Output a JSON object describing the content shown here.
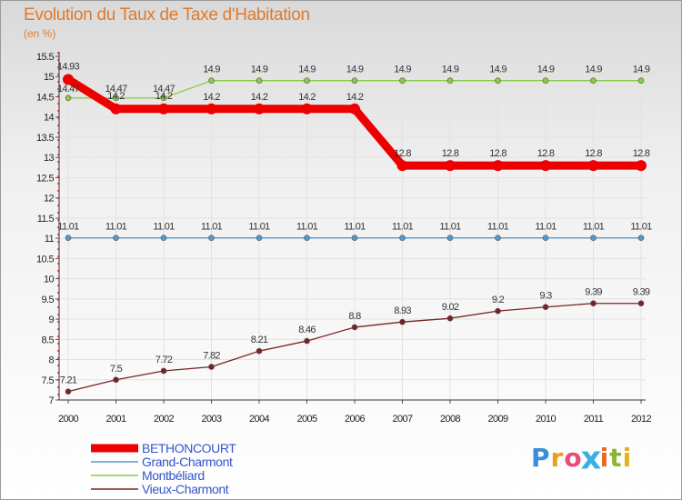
{
  "chart_data": {
    "type": "line",
    "title": "Evolution du Taux de Taxe d'Habitation",
    "subtitle": "(en %)",
    "x": [
      "2000",
      "2001",
      "2002",
      "2003",
      "2004",
      "2005",
      "2006",
      "2007",
      "2008",
      "2009",
      "2010",
      "2011",
      "2012"
    ],
    "yticks": [
      "7",
      "7.5",
      "8",
      "8.5",
      "9",
      "9.5",
      "10",
      "10.5",
      "11",
      "11.5",
      "12",
      "12.5",
      "13",
      "13.5",
      "14",
      "14.5",
      "15",
      "15.5"
    ],
    "ylim": [
      7,
      15.5
    ],
    "series": [
      {
        "name": "BETHONCOURT",
        "color": "#ee0000",
        "values": [
          14.93,
          14.2,
          14.2,
          14.2,
          14.2,
          14.2,
          14.2,
          12.8,
          12.8,
          12.8,
          12.8,
          12.8,
          12.8
        ],
        "labels": [
          "14.93",
          "14.2",
          "14.2",
          "14.2",
          "14.2",
          "14.2",
          "14.2",
          "12.8",
          "12.8",
          "12.8",
          "12.8",
          "12.8",
          "12.8"
        ]
      },
      {
        "name": "Grand-Charmont",
        "color": "#5599cc",
        "values": [
          11.01,
          11.01,
          11.01,
          11.01,
          11.01,
          11.01,
          11.01,
          11.01,
          11.01,
          11.01,
          11.01,
          11.01,
          11.01
        ],
        "labels": [
          "11.01",
          "11.01",
          "11.01",
          "11.01",
          "11.01",
          "11.01",
          "11.01",
          "11.01",
          "11.01",
          "11.01",
          "11.01",
          "11.01",
          "11.01"
        ]
      },
      {
        "name": "Montbéliard",
        "color": "#88cc44",
        "values": [
          14.47,
          14.47,
          14.47,
          14.9,
          14.9,
          14.9,
          14.9,
          14.9,
          14.9,
          14.9,
          14.9,
          14.9,
          14.9
        ],
        "labels": [
          "14.47",
          "14.47",
          "14.47",
          "14.9",
          "14.9",
          "14.9",
          "14.9",
          "14.9",
          "14.9",
          "14.9",
          "14.9",
          "14.9",
          "14.9"
        ]
      },
      {
        "name": "Vieux-Charmont",
        "color": "#7a2222",
        "values": [
          7.21,
          7.5,
          7.72,
          7.82,
          8.21,
          8.46,
          8.8,
          8.93,
          9.02,
          9.2,
          9.3,
          9.39,
          9.39
        ],
        "labels": [
          "7.21",
          "7.5",
          "7.72",
          "7.82",
          "8.21",
          "8.46",
          "8.8",
          "8.93",
          "9.02",
          "9.2",
          "9.3",
          "9.39",
          "9.39"
        ]
      }
    ]
  },
  "brand": {
    "letters": [
      "P",
      "r",
      "o",
      "x",
      "i",
      "t",
      "i"
    ],
    "colors": [
      "#3a8fd6",
      "#e8a020",
      "#e84a7a",
      "#3ab0e0",
      "#e86a20",
      "#88b830",
      "#e8b020"
    ]
  }
}
